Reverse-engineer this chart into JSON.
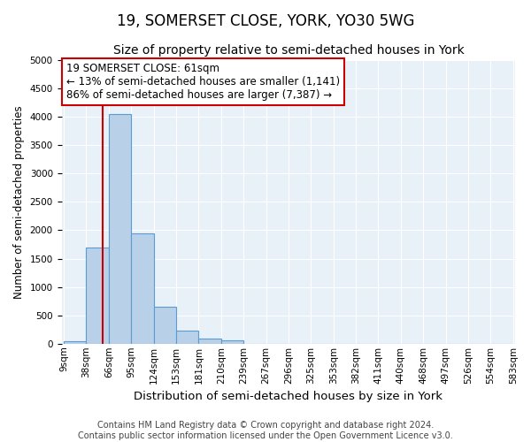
{
  "title": "19, SOMERSET CLOSE, YORK, YO30 5WG",
  "subtitle": "Size of property relative to semi-detached houses in York",
  "xlabel": "Distribution of semi-detached houses by size in York",
  "ylabel": "Number of semi-detached properties",
  "footer_line1": "Contains HM Land Registry data © Crown copyright and database right 2024.",
  "footer_line2": "Contains public sector information licensed under the Open Government Licence v3.0.",
  "annotation_line1": "19 SOMERSET CLOSE: 61sqm",
  "annotation_line2": "← 13% of semi-detached houses are smaller (1,141)",
  "annotation_line3": "86% of semi-detached houses are larger (7,387) →",
  "bar_values": [
    50,
    1700,
    4050,
    1950,
    650,
    230,
    90,
    60,
    0,
    0,
    0,
    0,
    0,
    0,
    0,
    0,
    0,
    0,
    0,
    0
  ],
  "xlabels": [
    "9sqm",
    "38sqm",
    "66sqm",
    "95sqm",
    "124sqm",
    "153sqm",
    "181sqm",
    "210sqm",
    "239sqm",
    "267sqm",
    "296sqm",
    "325sqm",
    "353sqm",
    "382sqm",
    "411sqm",
    "440sqm",
    "468sqm",
    "497sqm",
    "526sqm",
    "554sqm",
    "583sqm"
  ],
  "ylim": [
    0,
    5000
  ],
  "yticks": [
    0,
    500,
    1000,
    1500,
    2000,
    2500,
    3000,
    3500,
    4000,
    4500,
    5000
  ],
  "bar_color": "#b8d0e8",
  "bar_edge_color": "#5b9bd5",
  "vline_color": "#cc0000",
  "vline_bin": 1.72,
  "annotation_box_color": "#cc0000",
  "background_color": "#e8f0f8",
  "grid_color": "#ffffff",
  "title_fontsize": 12,
  "subtitle_fontsize": 10,
  "annotation_fontsize": 8.5,
  "tick_fontsize": 7.5,
  "ylabel_fontsize": 8.5,
  "xlabel_fontsize": 9.5,
  "footer_fontsize": 7
}
